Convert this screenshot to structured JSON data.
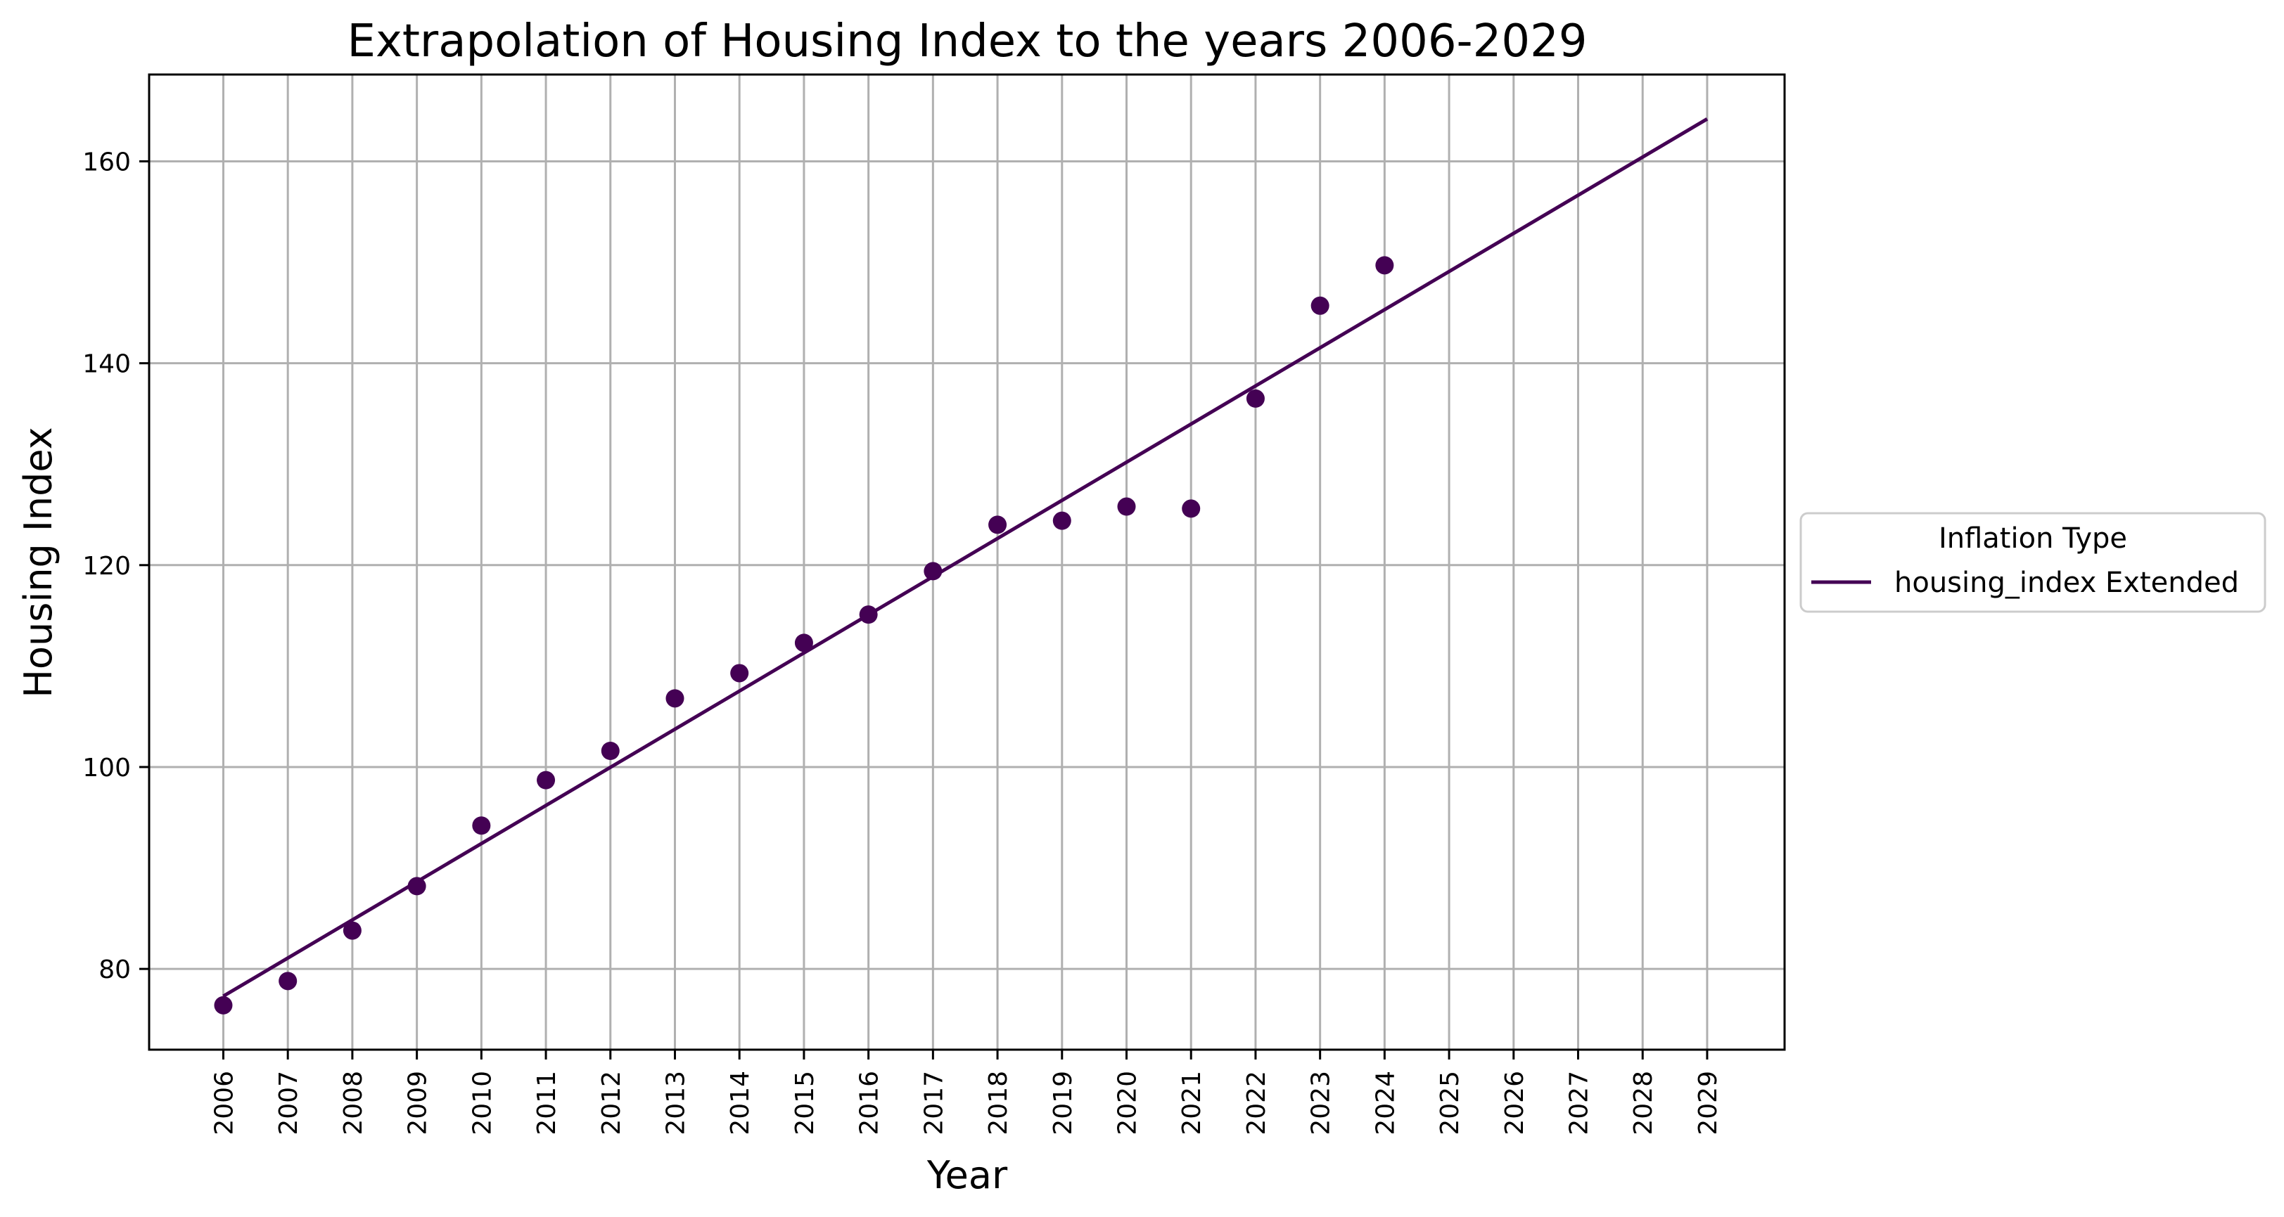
{
  "chart_data": {
    "type": "line",
    "title": "Extrapolation of Housing Index to the years 2006-2029",
    "xlabel": "Year",
    "ylabel": "Housing Index",
    "xlim": [
      2004.85,
      2030.2
    ],
    "ylim": [
      72,
      168.6
    ],
    "x_ticks": [
      2006,
      2007,
      2008,
      2009,
      2010,
      2011,
      2012,
      2013,
      2014,
      2015,
      2016,
      2017,
      2018,
      2019,
      2020,
      2021,
      2022,
      2023,
      2024,
      2025,
      2026,
      2027,
      2028,
      2029
    ],
    "y_ticks": [
      80,
      100,
      120,
      140,
      160
    ],
    "grid": true,
    "legend": {
      "title": "Inflation Type",
      "placement": "outside right",
      "entries": [
        "housing_index Extended"
      ]
    },
    "series": [
      {
        "name": "housing_index Extended",
        "kind": "line",
        "color": "#440154",
        "x": [
          2006,
          2029
        ],
        "y": [
          77.3,
          164.2
        ]
      },
      {
        "kind": "scatter",
        "color": "#440154",
        "x": [
          2006,
          2007,
          2008,
          2009,
          2010,
          2011,
          2012,
          2013,
          2014,
          2015,
          2016,
          2017,
          2018,
          2019,
          2020,
          2021,
          2022,
          2023,
          2024
        ],
        "y": [
          76.4,
          78.8,
          83.8,
          88.2,
          94.2,
          98.7,
          101.6,
          106.8,
          109.3,
          112.3,
          115.1,
          119.4,
          124.0,
          124.4,
          125.8,
          125.6,
          136.5,
          145.7,
          149.7
        ]
      }
    ]
  }
}
